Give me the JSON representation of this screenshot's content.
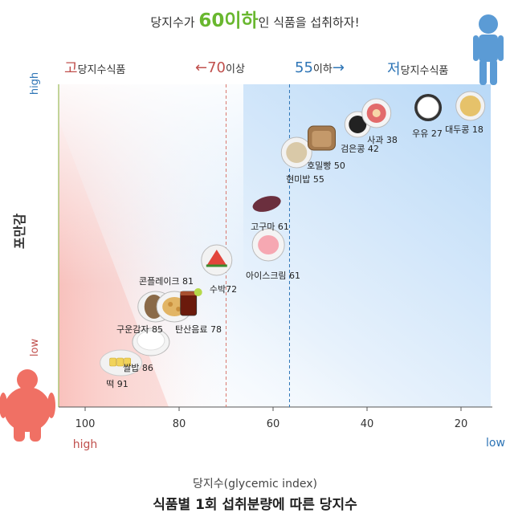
{
  "title": {
    "pre": "당지수가 ",
    "highlight": "60이하",
    "post": "인 식품을 섭취하자!"
  },
  "bands": {
    "high_gi": {
      "accent": "고",
      "text": "당지수식품"
    },
    "arrow70": {
      "arrow": "←",
      "num": "70",
      "text": "이상"
    },
    "arrow55": {
      "num": "55",
      "text": "이하",
      "arrow": "→"
    },
    "low_gi": {
      "accent": "저",
      "text": "당지수식품"
    }
  },
  "y_axis": {
    "label": "포만감",
    "high": "high",
    "low": "low"
  },
  "x_axis": {
    "high": "high",
    "low": "low",
    "label": "당지수(glycemic index)"
  },
  "footer": {
    "title": "식품별 1회 섭취분량에 따른 당지수"
  },
  "colors": {
    "red": "#c0504d",
    "blue": "#2e75b6",
    "green": "#69b72f",
    "person_blue": "#5b9bd5",
    "person_red": "#f07064"
  },
  "chart_data": {
    "type": "scatter",
    "title": "식품별 1회 섭취분량에 따른 당지수",
    "xlabel": "당지수(glycemic index)",
    "ylabel": "포만감",
    "x_reversed": true,
    "xlim": [
      106,
      13
    ],
    "xticks": [
      100,
      80,
      60,
      40,
      20
    ],
    "reference_lines": [
      70,
      55
    ],
    "points": [
      {
        "label": "떡 91",
        "x": 91,
        "icon": "rice-cake-icon"
      },
      {
        "label": "쌀밥 86",
        "x": 86,
        "icon": "rice-bowl-icon"
      },
      {
        "label": "구운감자 85",
        "x": 85,
        "icon": "baked-potato-icon"
      },
      {
        "label": "콘플레이크 81",
        "x": 81,
        "icon": "cornflakes-icon"
      },
      {
        "label": "탄산음료 78",
        "x": 78,
        "icon": "soda-icon"
      },
      {
        "label": "수박72",
        "x": 72,
        "icon": "watermelon-icon"
      },
      {
        "label": "아이스크림 61",
        "x": 61,
        "icon": "ice-cream-icon"
      },
      {
        "label": "고구마 61",
        "x": 61,
        "icon": "sweet-potato-icon"
      },
      {
        "label": "현미밥 55",
        "x": 55,
        "icon": "brown-rice-icon"
      },
      {
        "label": "호밀빵 50",
        "x": 50,
        "icon": "rye-bread-icon"
      },
      {
        "label": "검은콩 42",
        "x": 42,
        "icon": "black-beans-icon"
      },
      {
        "label": "사과 38",
        "x": 38,
        "icon": "apple-icon"
      },
      {
        "label": "우유 27",
        "x": 27,
        "icon": "milk-icon"
      },
      {
        "label": "대두콩 18",
        "x": 18,
        "icon": "soybean-icon"
      }
    ]
  }
}
